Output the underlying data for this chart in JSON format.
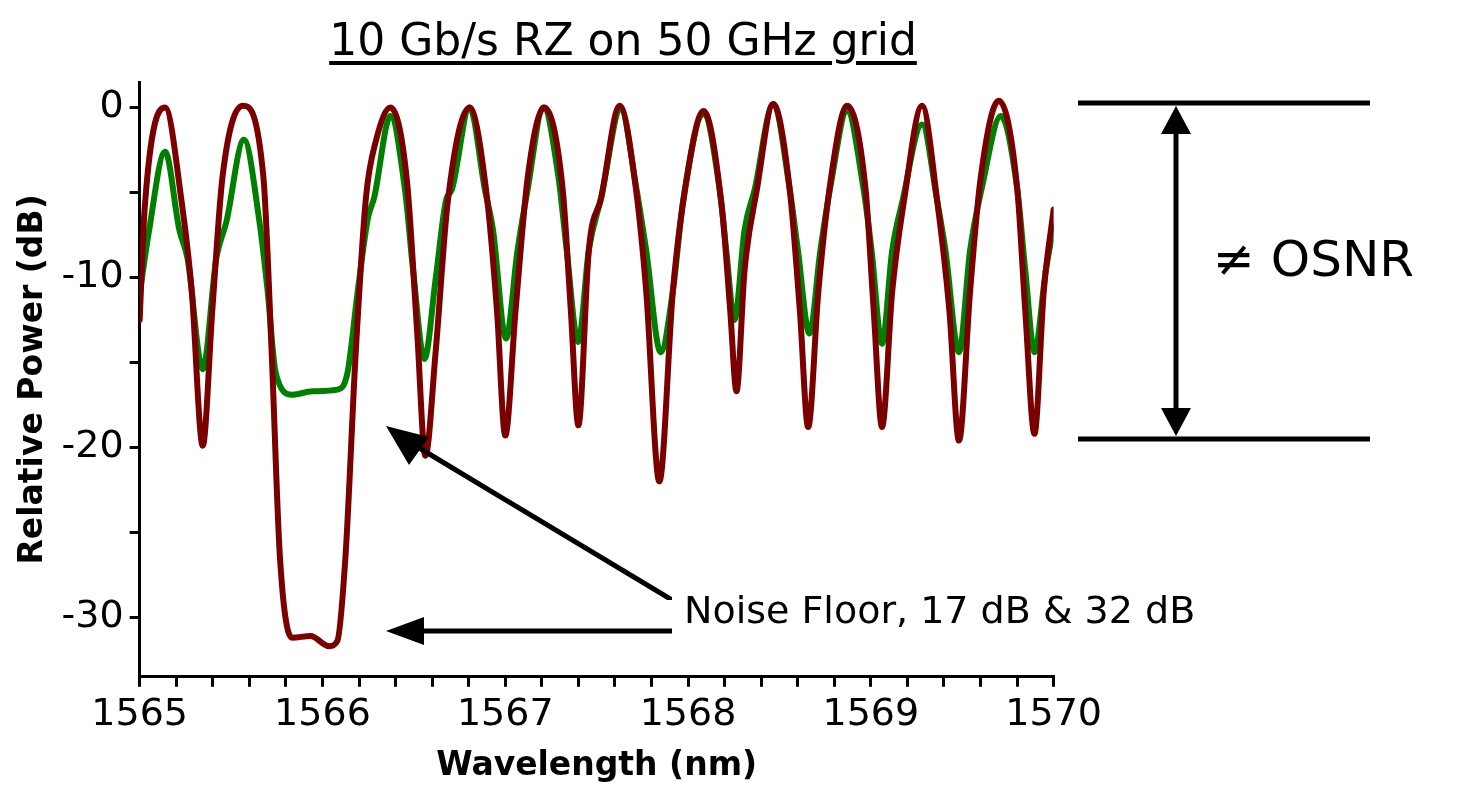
{
  "chart_data": {
    "type": "line",
    "title": "10 Gb/s RZ on 50 GHz grid",
    "xlabel": "Wavelength (nm)",
    "ylabel": "Relative Power (dB)",
    "xlim": [
      1565,
      1570
    ],
    "ylim": [
      -33.5,
      1.5
    ],
    "xticks": [
      1565,
      {
        "value": 1565.2,
        "label": null
      },
      {
        "value": 1565.4,
        "label": null
      },
      {
        "value": 1565.6,
        "label": null
      },
      {
        "value": 1565.8,
        "label": null
      },
      1566,
      {
        "value": 1566.2,
        "label": null
      },
      {
        "value": 1566.4,
        "label": null
      },
      {
        "value": 1566.6,
        "label": null
      },
      {
        "value": 1566.8,
        "label": null
      },
      1567,
      {
        "value": 1567.2,
        "label": null
      },
      {
        "value": 1567.4,
        "label": null
      },
      {
        "value": 1567.6,
        "label": null
      },
      {
        "value": 1567.8,
        "label": null
      },
      1568,
      {
        "value": 1568.2,
        "label": null
      },
      {
        "value": 1568.4,
        "label": null
      },
      {
        "value": 1568.6,
        "label": null
      },
      {
        "value": 1568.8,
        "label": null
      },
      1569,
      {
        "value": 1569.2,
        "label": null
      },
      {
        "value": 1569.4,
        "label": null
      },
      {
        "value": 1569.6,
        "label": null
      },
      {
        "value": 1569.8,
        "label": null
      },
      1570
    ],
    "yticks": [
      -30,
      {
        "value": -25,
        "label": null
      },
      -20,
      {
        "value": -15,
        "label": null
      },
      -10,
      {
        "value": -5,
        "label": null
      },
      0
    ],
    "grid": false,
    "legend": false,
    "marker": "none",
    "line_style": "solid",
    "annotations": [
      "≠ OSNR",
      "Noise Floor, 17 dB & 32 dB"
    ],
    "series": [
      {
        "color": "#7b0000",
        "x": [
          1565,
          1565.027,
          1565.139,
          1565.229,
          1565.285,
          1565.345,
          1565.397,
          1565.453,
          1565.565,
          1565.677,
          1565.722,
          1565.767,
          1565.834,
          1565.935,
          1566.036,
          1566.081,
          1566.126,
          1566.182,
          1566.238,
          1566.294,
          1566.372,
          1566.462,
          1566.518,
          1566.563,
          1566.619,
          1566.686,
          1566.805,
          1566.9,
          1566.955,
          1567,
          1567.056,
          1567.123,
          1567.213,
          1567.314,
          1567.359,
          1567.4,
          1567.457,
          1567.525,
          1567.626,
          1567.715,
          1567.771,
          1567.843,
          1567.917,
          1567.984,
          1568.085,
          1568.186,
          1568.231,
          1568.265,
          1568.309,
          1568.377,
          1568.466,
          1568.556,
          1568.612,
          1568.657,
          1568.713,
          1568.78,
          1568.87,
          1568.971,
          1569.016,
          1569.061,
          1569.117,
          1569.184,
          1569.28,
          1569.363,
          1569.43,
          1569.482,
          1569.543,
          1569.599,
          1569.7,
          1569.801,
          1569.845,
          1569.895,
          1569.946,
          1570
        ],
        "values": [
          -12.5,
          -6,
          0,
          -5.5,
          -10.8,
          -19.9,
          -12,
          -4.1,
          0.1,
          -4.1,
          -14.4,
          -26.4,
          -31.2,
          -31.1,
          -31.7,
          -31.4,
          -26.4,
          -14.4,
          -5.3,
          -1.9,
          0,
          -4.3,
          -13.2,
          -20.5,
          -14.4,
          -5.5,
          0,
          -5.3,
          -12,
          -19.3,
          -12,
          -4.1,
          0,
          -4.8,
          -12,
          -18.7,
          -8.4,
          -5.3,
          0.1,
          -4.8,
          -10.8,
          -22,
          -10.8,
          -4.8,
          -0.2,
          -6,
          -12,
          -16.7,
          -9.6,
          -4.8,
          0.2,
          -4.8,
          -12,
          -18.8,
          -10.8,
          -4.3,
          0.1,
          -4.8,
          -12,
          -18.8,
          -10.8,
          -5.3,
          0.1,
          -5.5,
          -12,
          -19.6,
          -10.8,
          -4.3,
          0.4,
          -4.8,
          -12,
          -19.2,
          -10.8,
          -6
        ]
      },
      {
        "color": "#008000",
        "x": [
          1565,
          1565.049,
          1565.139,
          1565.217,
          1565.262,
          1565.345,
          1565.419,
          1565.475,
          1565.57,
          1565.655,
          1565.7,
          1565.744,
          1565.834,
          1565.946,
          1566.081,
          1566.137,
          1566.193,
          1566.249,
          1566.283,
          1566.372,
          1566.451,
          1566.496,
          1566.558,
          1566.619,
          1566.675,
          1566.709,
          1566.805,
          1566.888,
          1566.933,
          1567.004,
          1567.067,
          1567.123,
          1567.209,
          1567.291,
          1567.336,
          1567.399,
          1567.457,
          1567.525,
          1567.632,
          1567.715,
          1567.771,
          1567.85,
          1567.917,
          1567.973,
          1568.085,
          1568.175,
          1568.209,
          1568.254,
          1568.309,
          1568.365,
          1568.466,
          1568.556,
          1568.601,
          1568.664,
          1568.724,
          1568.78,
          1568.87,
          1568.96,
          1569.004,
          1569.061,
          1569.117,
          1569.173,
          1569.28,
          1569.363,
          1569.408,
          1569.482,
          1569.543,
          1569.61,
          1569.711,
          1569.801,
          1569.845,
          1569.895,
          1569.957,
          1570
        ],
        "values": [
          -11,
          -7.4,
          -2.6,
          -7.2,
          -8.9,
          -15.4,
          -8.9,
          -6.7,
          -1.9,
          -6.7,
          -10.8,
          -15.6,
          -16.9,
          -16.7,
          -16.6,
          -15.6,
          -10.8,
          -6.5,
          -5.3,
          -0.5,
          -4.8,
          -9.6,
          -14.8,
          -10.1,
          -5.5,
          -4.8,
          0,
          -4.8,
          -7.2,
          -13.6,
          -8.4,
          -4.8,
          0,
          -4.1,
          -8.4,
          -13.8,
          -8.4,
          -5.3,
          -0.1,
          -4.6,
          -8.4,
          -14.4,
          -10.8,
          -5.5,
          -0.4,
          -5,
          -8.4,
          -12.5,
          -7.2,
          -4.8,
          0.2,
          -4.8,
          -8.4,
          -13.3,
          -8.4,
          -4.6,
          -0.2,
          -4.8,
          -8.4,
          -13.9,
          -8.4,
          -5.5,
          -1,
          -5.5,
          -8.4,
          -14.4,
          -8.4,
          -4.6,
          -0.5,
          -4.8,
          -9.6,
          -14.4,
          -9.6,
          -7
        ]
      }
    ]
  }
}
